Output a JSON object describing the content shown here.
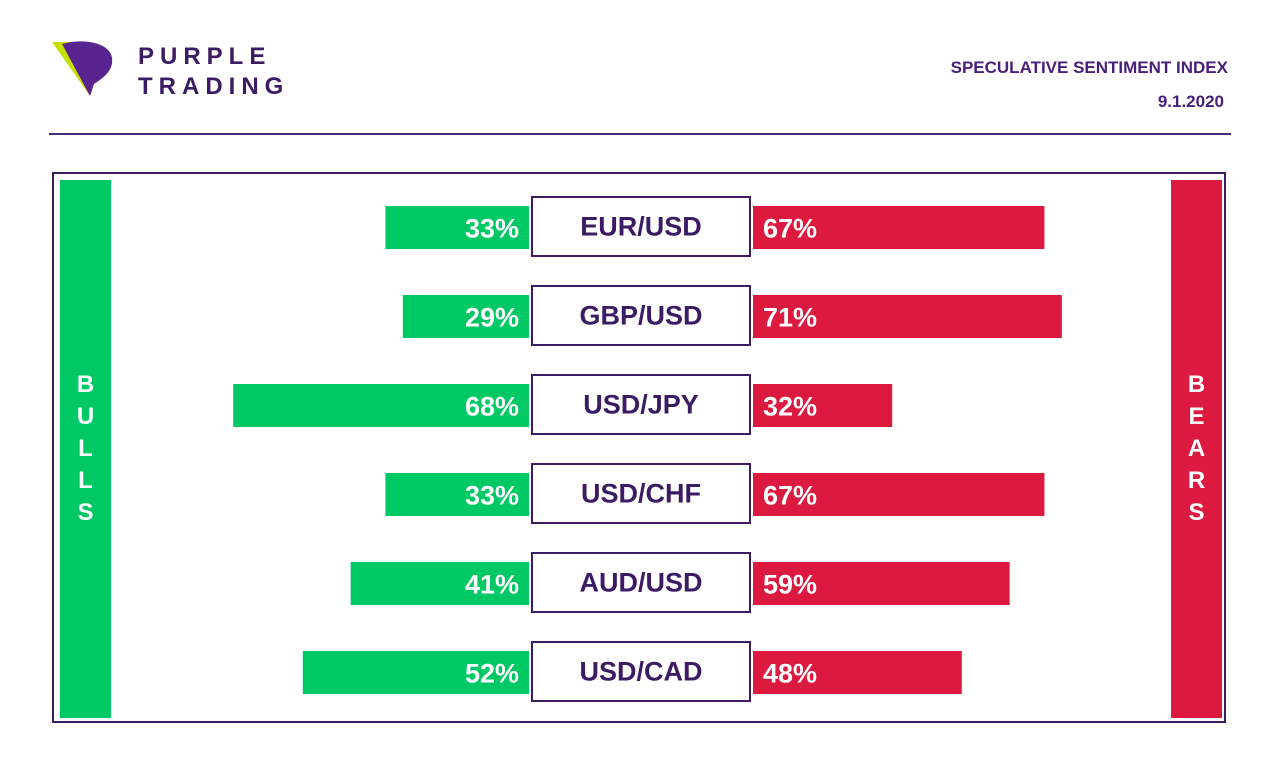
{
  "brand": {
    "line1": "PURPLE",
    "line2": "TRADING",
    "colors": {
      "purple": "#5a2490",
      "lime": "#c8e000",
      "dark": "#3b1b63"
    }
  },
  "header": {
    "title": "SPECULATIVE SENTIMENT INDEX",
    "date": "9.1.2020"
  },
  "sides": {
    "bulls": "BULLS",
    "bears": "BEARS"
  },
  "colors": {
    "bulls": "#00c865",
    "bears": "#dc1a3f",
    "frame": "#3b1b63"
  },
  "chart_data": {
    "type": "bar",
    "title": "SPECULATIVE SENTIMENT INDEX",
    "categories": [
      "EUR/USD",
      "GBP/USD",
      "USD/JPY",
      "USD/CHF",
      "AUD/USD",
      "USD/CAD"
    ],
    "series": [
      {
        "name": "BULLS",
        "values": [
          33,
          29,
          68,
          33,
          41,
          52
        ],
        "color": "#00c865"
      },
      {
        "name": "BEARS",
        "values": [
          67,
          71,
          32,
          67,
          59,
          48
        ],
        "color": "#dc1a3f"
      }
    ],
    "unit": "%",
    "ylim": [
      0,
      100
    ],
    "grid": false
  }
}
